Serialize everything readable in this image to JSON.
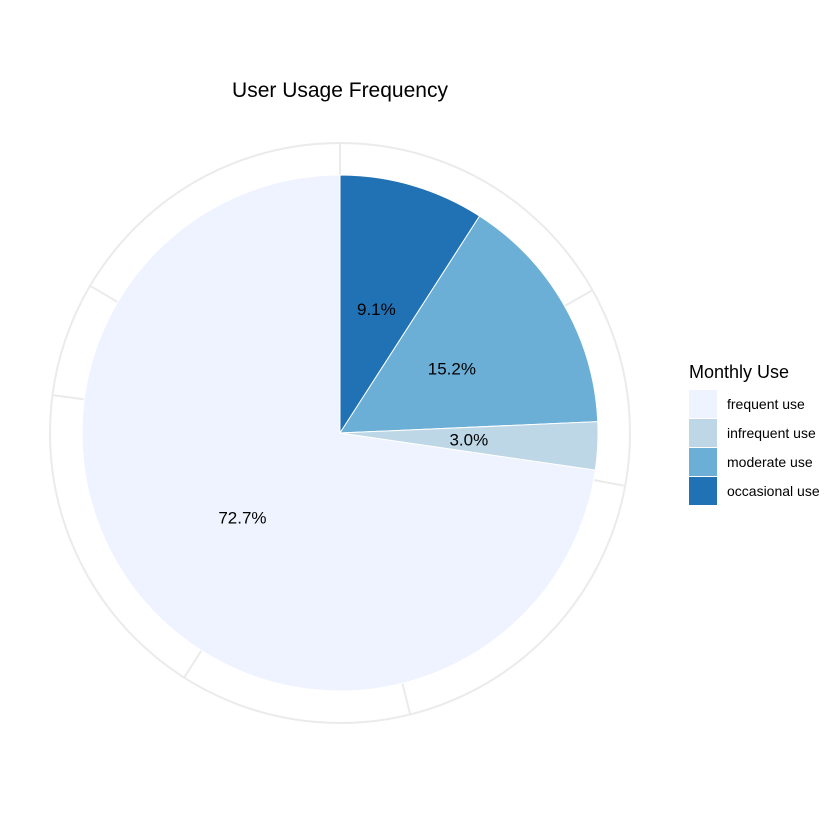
{
  "chart_data": {
    "type": "pie",
    "title": "User Usage Frequency",
    "legend_title": "Monthly Use",
    "legend_position": "right",
    "start_angle_deg": 0,
    "direction": "clockwise",
    "slices": [
      {
        "category": "occasional use",
        "value": 9.1,
        "label": "9.1%",
        "color": "#2171b5"
      },
      {
        "category": "moderate use",
        "value": 15.2,
        "label": "15.2%",
        "color": "#6baed6"
      },
      {
        "category": "infrequent use",
        "value": 3.0,
        "label": "3.0%",
        "color": "#bdd7e7"
      },
      {
        "category": "frequent use",
        "value": 72.7,
        "label": "72.7%",
        "color": "#eff3ff"
      }
    ],
    "legend": [
      {
        "label": "frequent use",
        "color": "#eff3ff"
      },
      {
        "label": "infrequent use",
        "color": "#bdd7e7"
      },
      {
        "label": "moderate use",
        "color": "#6baed6"
      },
      {
        "label": "occasional use",
        "color": "#2171b5"
      }
    ],
    "grid": true,
    "grid_color": "#ebebeb"
  }
}
